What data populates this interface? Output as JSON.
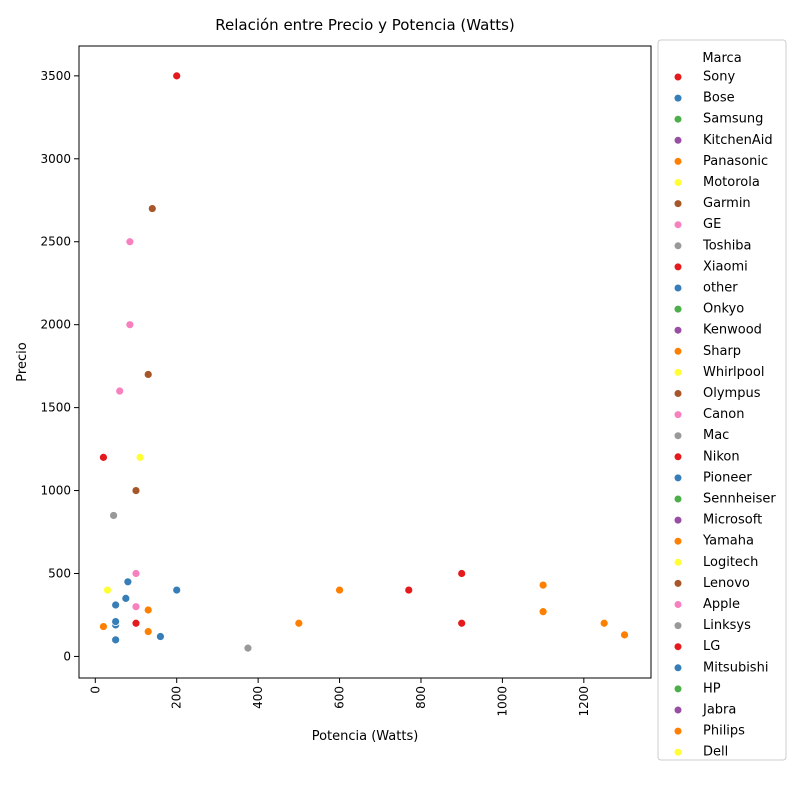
{
  "chart_data": {
    "type": "scatter",
    "title": "Relación entre Precio y Potencia (Watts)",
    "xlabel": "Potencia (Watts)",
    "ylabel": "Precio",
    "xlim": [
      -40,
      1365
    ],
    "ylim": [
      -130,
      3680
    ],
    "xticks": [
      0,
      200,
      400,
      600,
      800,
      1000,
      1200
    ],
    "yticks": [
      0,
      500,
      1000,
      1500,
      2000,
      2500,
      3000,
      3500
    ],
    "grid": false,
    "legend": {
      "title": "Marca",
      "placement": "outside-right"
    },
    "series": [
      {
        "name": "Sony",
        "color": "#e41a1c",
        "points": [
          [
            200,
            3500
          ]
        ]
      },
      {
        "name": "Bose",
        "color": "#377eb8",
        "points": [
          [
            200,
            400
          ]
        ]
      },
      {
        "name": "Samsung",
        "color": "#4daf4a",
        "points": []
      },
      {
        "name": "KitchenAid",
        "color": "#984ea3",
        "points": []
      },
      {
        "name": "Panasonic",
        "color": "#ff7f00",
        "points": [
          [
            1100,
            430
          ]
        ]
      },
      {
        "name": "Motorola",
        "color": "#ffff33",
        "points": [
          [
            110,
            1200
          ]
        ]
      },
      {
        "name": "Garmin",
        "color": "#a65628",
        "points": [
          [
            140,
            2700
          ]
        ]
      },
      {
        "name": "GE",
        "color": "#f781bf",
        "points": [
          [
            85,
            2500
          ]
        ]
      },
      {
        "name": "Toshiba",
        "color": "#999999",
        "points": [
          [
            375,
            50
          ]
        ]
      },
      {
        "name": "Xiaomi",
        "color": "#e41a1c",
        "points": [
          [
            900,
            500
          ]
        ]
      },
      {
        "name": "other",
        "color": "#377eb8",
        "points": [
          [
            50,
            100
          ],
          [
            50,
            190
          ],
          [
            50,
            210
          ],
          [
            160,
            120
          ]
        ]
      },
      {
        "name": "Onkyo",
        "color": "#4daf4a",
        "points": []
      },
      {
        "name": "Kenwood",
        "color": "#984ea3",
        "points": []
      },
      {
        "name": "Sharp",
        "color": "#ff7f00",
        "points": [
          [
            130,
            280
          ],
          [
            500,
            200
          ]
        ]
      },
      {
        "name": "Whirlpool",
        "color": "#ffff33",
        "points": [
          [
            30,
            400
          ]
        ]
      },
      {
        "name": "Olympus",
        "color": "#a65628",
        "points": [
          [
            130,
            1700
          ]
        ]
      },
      {
        "name": "Canon",
        "color": "#f781bf",
        "points": [
          [
            85,
            2000
          ]
        ]
      },
      {
        "name": "Mac",
        "color": "#999999",
        "points": [
          [
            45,
            850
          ]
        ]
      },
      {
        "name": "Nikon",
        "color": "#e41a1c",
        "points": [
          [
            770,
            400
          ]
        ]
      },
      {
        "name": "Pioneer",
        "color": "#377eb8",
        "points": [
          [
            50,
            310
          ]
        ]
      },
      {
        "name": "Sennheiser",
        "color": "#4daf4a",
        "points": []
      },
      {
        "name": "Microsoft",
        "color": "#984ea3",
        "points": []
      },
      {
        "name": "Yamaha",
        "color": "#ff7f00",
        "points": [
          [
            1250,
            200
          ],
          [
            1300,
            130
          ]
        ]
      },
      {
        "name": "Logitech",
        "color": "#ffff33",
        "points": []
      },
      {
        "name": "Lenovo",
        "color": "#a65628",
        "points": [
          [
            100,
            1000
          ]
        ]
      },
      {
        "name": "Apple",
        "color": "#f781bf",
        "points": [
          [
            100,
            500
          ],
          [
            60,
            1600
          ],
          [
            100,
            300
          ]
        ]
      },
      {
        "name": "Linksys",
        "color": "#999999",
        "points": []
      },
      {
        "name": "LG",
        "color": "#e41a1c",
        "points": [
          [
            20,
            1200
          ],
          [
            100,
            200
          ],
          [
            900,
            200
          ]
        ]
      },
      {
        "name": "Mitsubishi",
        "color": "#377eb8",
        "points": [
          [
            80,
            450
          ],
          [
            75,
            350
          ]
        ]
      },
      {
        "name": "HP",
        "color": "#4daf4a",
        "points": []
      },
      {
        "name": "Jabra",
        "color": "#984ea3",
        "points": []
      },
      {
        "name": "Philips",
        "color": "#ff7f00",
        "points": [
          [
            20,
            180
          ],
          [
            130,
            150
          ],
          [
            600,
            400
          ],
          [
            1100,
            270
          ]
        ]
      },
      {
        "name": "Dell",
        "color": "#ffff33",
        "points": []
      }
    ]
  }
}
